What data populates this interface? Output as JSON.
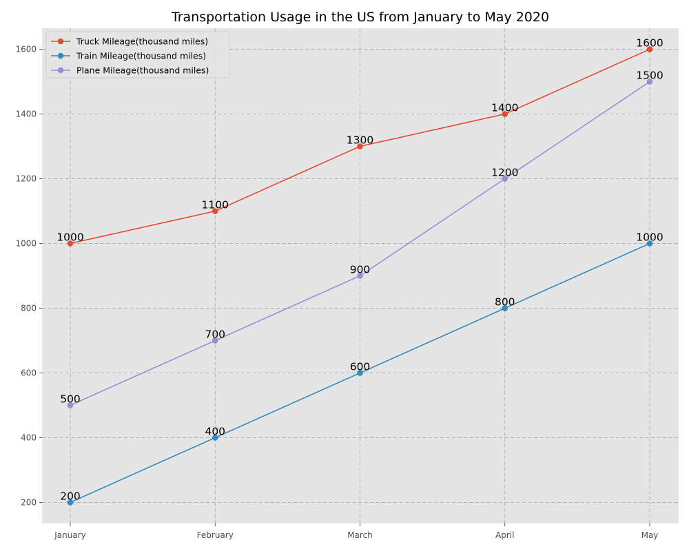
{
  "chart_data": {
    "type": "line",
    "title": "Transportation Usage in the US from January to May 2020",
    "xlabel": "",
    "ylabel": "",
    "categories": [
      "January",
      "February",
      "March",
      "April",
      "May"
    ],
    "yticks": [
      200,
      400,
      600,
      800,
      1000,
      1200,
      1400,
      1600
    ],
    "ylim": [
      135,
      1665
    ],
    "grid": true,
    "legend_position": "top-left",
    "series": [
      {
        "name": "Truck Mileage(thousand miles)",
        "color": "#e24a33",
        "values": [
          1000,
          1100,
          1300,
          1400,
          1600
        ]
      },
      {
        "name": "Train Mileage(thousand miles)",
        "color": "#348abd",
        "values": [
          200,
          400,
          600,
          800,
          1000
        ]
      },
      {
        "name": "Plane Mileage(thousand miles)",
        "color": "#988ed5",
        "values": [
          500,
          700,
          900,
          1200,
          1500
        ]
      }
    ]
  }
}
